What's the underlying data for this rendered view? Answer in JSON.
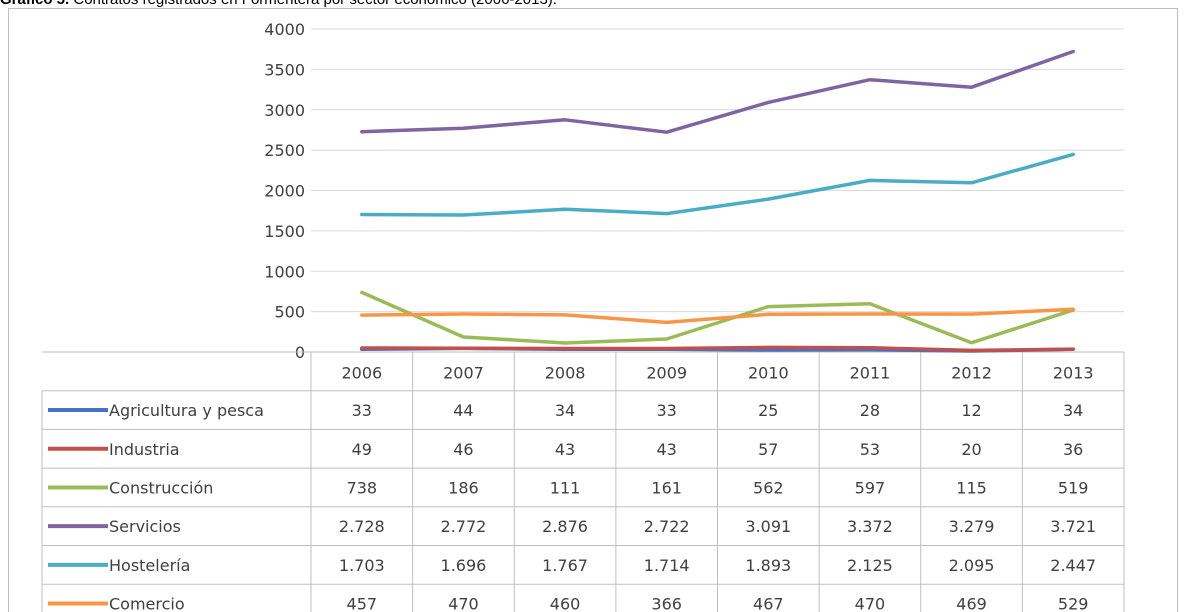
{
  "title_bold": "Gráfico 5.",
  "title_rest": " Contratos registrados en Formentera por sector económico (2006-2013).",
  "chart_data": {
    "type": "line",
    "title": "Gráfico 5. Contratos registrados en Formentera por sector económico (2006-2013).",
    "categories": [
      "2006",
      "2007",
      "2008",
      "2009",
      "2010",
      "2011",
      "2012",
      "2013"
    ],
    "ylim": [
      0,
      4000
    ],
    "yticks": [
      "4000",
      "3500",
      "3000",
      "2500",
      "2000",
      "1500",
      "1000",
      "500",
      "0"
    ],
    "grid": true,
    "legend": "data-table",
    "series": [
      {
        "name": "Agricultura y pesca",
        "color": "#4472c4",
        "values": [
          33,
          44,
          34,
          33,
          25,
          28,
          12,
          34
        ],
        "labels": [
          "33",
          "44",
          "34",
          "33",
          "25",
          "28",
          "12",
          "34"
        ]
      },
      {
        "name": "Industria",
        "color": "#c0504d",
        "values": [
          49,
          46,
          43,
          43,
          57,
          53,
          20,
          36
        ],
        "labels": [
          "49",
          "46",
          "43",
          "43",
          "57",
          "53",
          "20",
          "36"
        ]
      },
      {
        "name": "Construcción",
        "color": "#9bbb59",
        "values": [
          738,
          186,
          111,
          161,
          562,
          597,
          115,
          519
        ],
        "labels": [
          "738",
          "186",
          "111",
          "161",
          "562",
          "597",
          "115",
          "519"
        ]
      },
      {
        "name": "Servicios",
        "color": "#8064a2",
        "values": [
          2728,
          2772,
          2876,
          2722,
          3091,
          3372,
          3279,
          3721
        ],
        "labels": [
          "2.728",
          "2.772",
          "2.876",
          "2.722",
          "3.091",
          "3.372",
          "3.279",
          "3.721"
        ]
      },
      {
        "name": "Hostelería",
        "color": "#4bacc6",
        "values": [
          1703,
          1696,
          1767,
          1714,
          1893,
          2125,
          2095,
          2447
        ],
        "labels": [
          "1.703",
          "1.696",
          "1.767",
          "1.714",
          "1.893",
          "2.125",
          "2.095",
          "2.447"
        ]
      },
      {
        "name": "Comercio",
        "color": "#f79646",
        "values": [
          457,
          470,
          460,
          366,
          467,
          470,
          469,
          529
        ],
        "labels": [
          "457",
          "470",
          "460",
          "366",
          "467",
          "470",
          "469",
          "529"
        ]
      }
    ]
  }
}
